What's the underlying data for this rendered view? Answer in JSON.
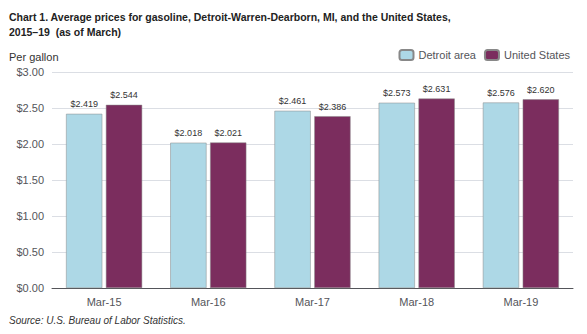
{
  "chart_data": {
    "type": "bar",
    "title": "Chart 1. Average prices for gasoline, Detroit-Warren-Dearborn, MI, and the United States,\n2015–19  (as of March)",
    "ylabel": "Per gallon",
    "annotations": [
      "Source: U.S. Bureau of Labor Statistics."
    ],
    "categories": [
      "Mar-15",
      "Mar-16",
      "Mar-17",
      "Mar-18",
      "Mar-19"
    ],
    "series": [
      {
        "name": "Detroit area",
        "color": "#ADD8E6",
        "values": [
          2.419,
          2.018,
          2.461,
          2.573,
          2.576
        ],
        "value_labels": [
          "$2.419",
          "$2.018",
          "$2.461",
          "$2.573",
          "$2.576"
        ]
      },
      {
        "name": "United States",
        "color": "#7B2D5E",
        "values": [
          2.544,
          2.021,
          2.386,
          2.631,
          2.62
        ],
        "value_labels": [
          "$2.544",
          "$2.021",
          "$2.386",
          "$2.631",
          "$2.620"
        ]
      }
    ],
    "ylim": [
      0.0,
      3.0
    ],
    "yticks": [
      {
        "value": 0.0,
        "label": "$0.00"
      },
      {
        "value": 0.5,
        "label": "$0.50"
      },
      {
        "value": 1.0,
        "label": "$1.00"
      },
      {
        "value": 1.5,
        "label": "$1.50"
      },
      {
        "value": 2.0,
        "label": "$2.00"
      },
      {
        "value": 2.5,
        "label": "$2.50"
      },
      {
        "value": 3.0,
        "label": "$3.00"
      }
    ],
    "grid": true,
    "legend": "upper right",
    "data_labels": true
  }
}
